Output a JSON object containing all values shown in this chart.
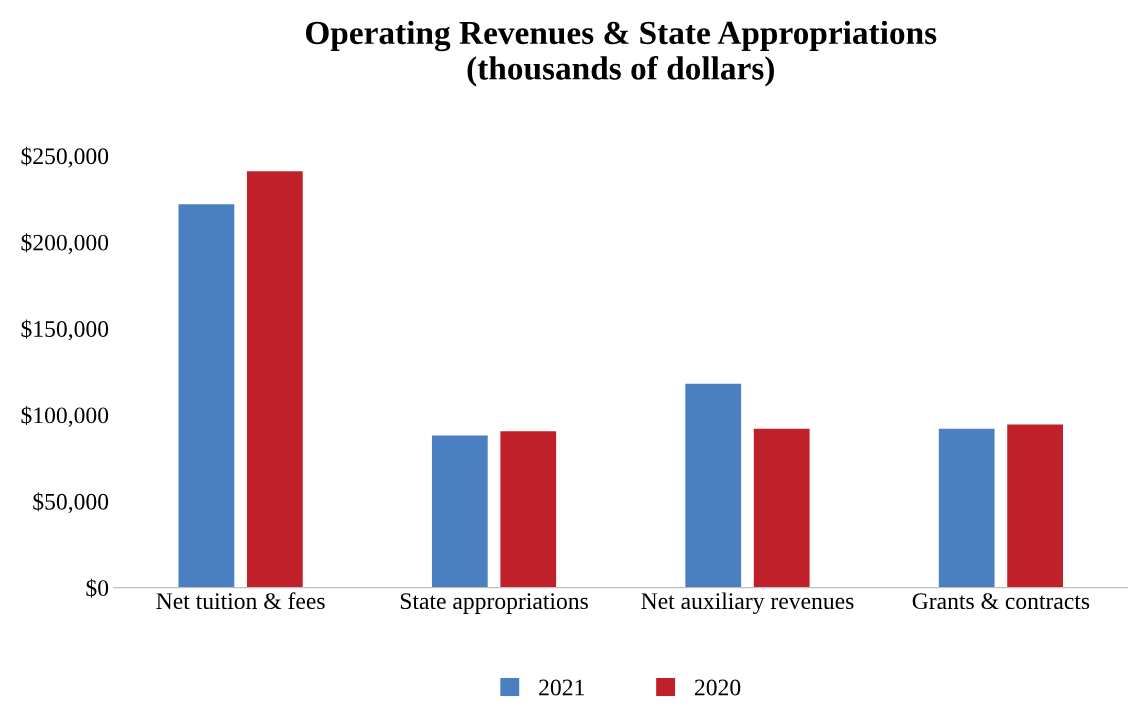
{
  "chart_data": {
    "type": "bar",
    "title": "Operating Revenues & State Appropriations\n(thousands of dollars)",
    "categories": [
      "Net tuition & fees",
      "State appropriations",
      "Net auxiliary revenues",
      "Grants & contracts"
    ],
    "series": [
      {
        "name": "2021",
        "color": "#4a7fc1",
        "values": [
          222000,
          88000,
          118000,
          92000
        ]
      },
      {
        "name": "2020",
        "color": "#c0202a",
        "values": [
          241000,
          90500,
          92000,
          94500
        ]
      }
    ],
    "ylim": [
      0,
      250000
    ],
    "yticks": [
      {
        "value": 0,
        "label": "$0"
      },
      {
        "value": 50000,
        "label": "$50,000"
      },
      {
        "value": 100000,
        "label": "$100,000"
      },
      {
        "value": 150000,
        "label": "$150,000"
      },
      {
        "value": 200000,
        "label": "$200,000"
      },
      {
        "value": 250000,
        "label": "$250,000"
      }
    ],
    "grid": false,
    "legend": "bottom"
  }
}
